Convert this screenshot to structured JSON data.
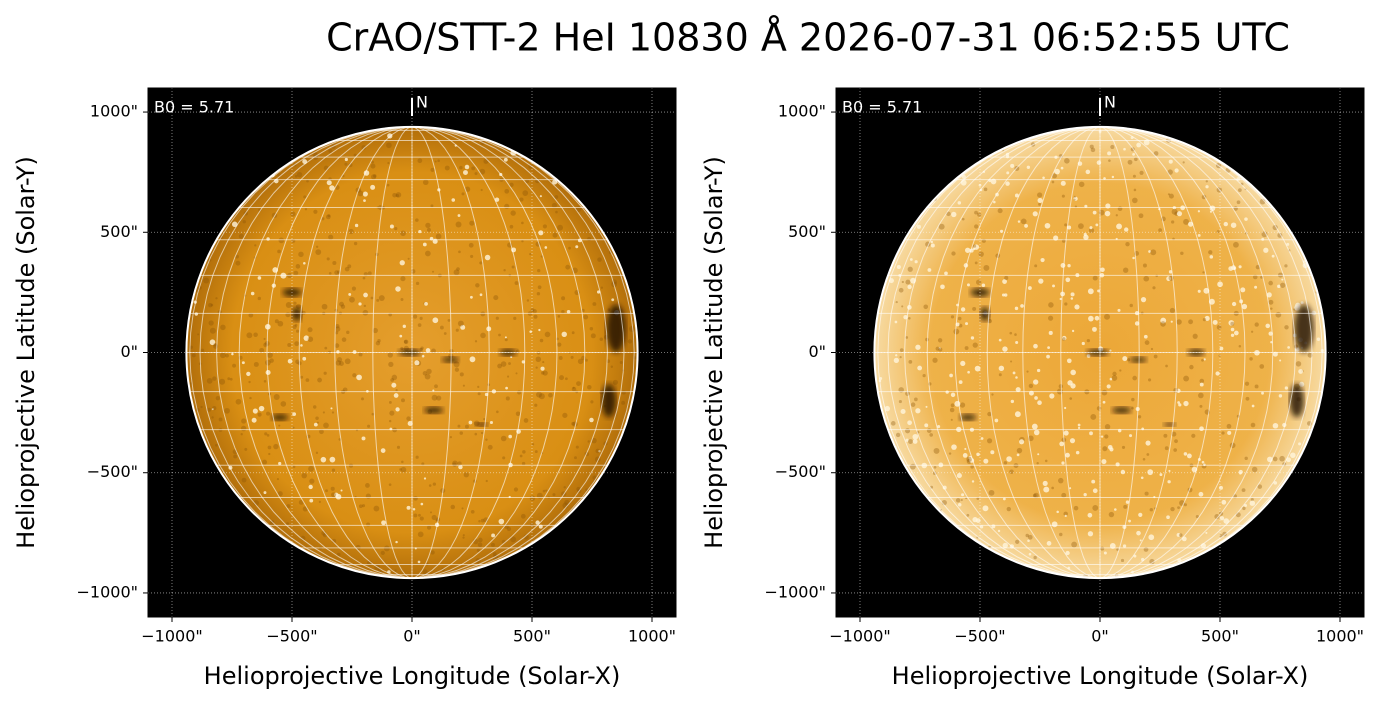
{
  "title": "CrAO/STT-2 HeI 10830 Å 2026-07-31 06:52:55 UTC",
  "chart_data": [
    {
      "type": "image",
      "xlabel": "Helioprojective Longitude (Solar-X)",
      "ylabel": "Helioprojective Latitude (Solar-Y)",
      "annotation": "B0 = 5.71",
      "north_label": "N",
      "xlim": [
        -1100,
        1100
      ],
      "ylim": [
        -1100,
        1100
      ],
      "xticks": [
        {
          "value": -1000,
          "label": "−1000\""
        },
        {
          "value": -500,
          "label": "−500\""
        },
        {
          "value": 0,
          "label": "0\""
        },
        {
          "value": 500,
          "label": "500\""
        },
        {
          "value": 1000,
          "label": "1000\""
        }
      ],
      "yticks": [
        {
          "value": -1000,
          "label": "−1000\""
        },
        {
          "value": -500,
          "label": "−500\""
        },
        {
          "value": 0,
          "label": "0\""
        },
        {
          "value": 500,
          "label": "500\""
        },
        {
          "value": 1000,
          "label": "1000\""
        }
      ],
      "radius": 940,
      "grid": true,
      "color": "#d88e12"
    },
    {
      "type": "image",
      "xlabel": "Helioprojective Longitude (Solar-X)",
      "ylabel": "Helioprojective Latitude (Solar-Y)",
      "annotation": "B0 = 5.71",
      "north_label": "N",
      "xlim": [
        -1100,
        1100
      ],
      "ylim": [
        -1100,
        1100
      ],
      "xticks": [
        {
          "value": -1000,
          "label": "−1000\""
        },
        {
          "value": -500,
          "label": "−500\""
        },
        {
          "value": 0,
          "label": "0\""
        },
        {
          "value": 500,
          "label": "500\""
        },
        {
          "value": 1000,
          "label": "1000\""
        }
      ],
      "yticks": [
        {
          "value": -1000,
          "label": "−1000\""
        },
        {
          "value": -500,
          "label": "−500\""
        },
        {
          "value": 0,
          "label": "0\""
        },
        {
          "value": 500,
          "label": "500\""
        },
        {
          "value": 1000,
          "label": "1000\""
        }
      ],
      "radius": 940,
      "grid": true,
      "color": "#e9a52c"
    }
  ]
}
